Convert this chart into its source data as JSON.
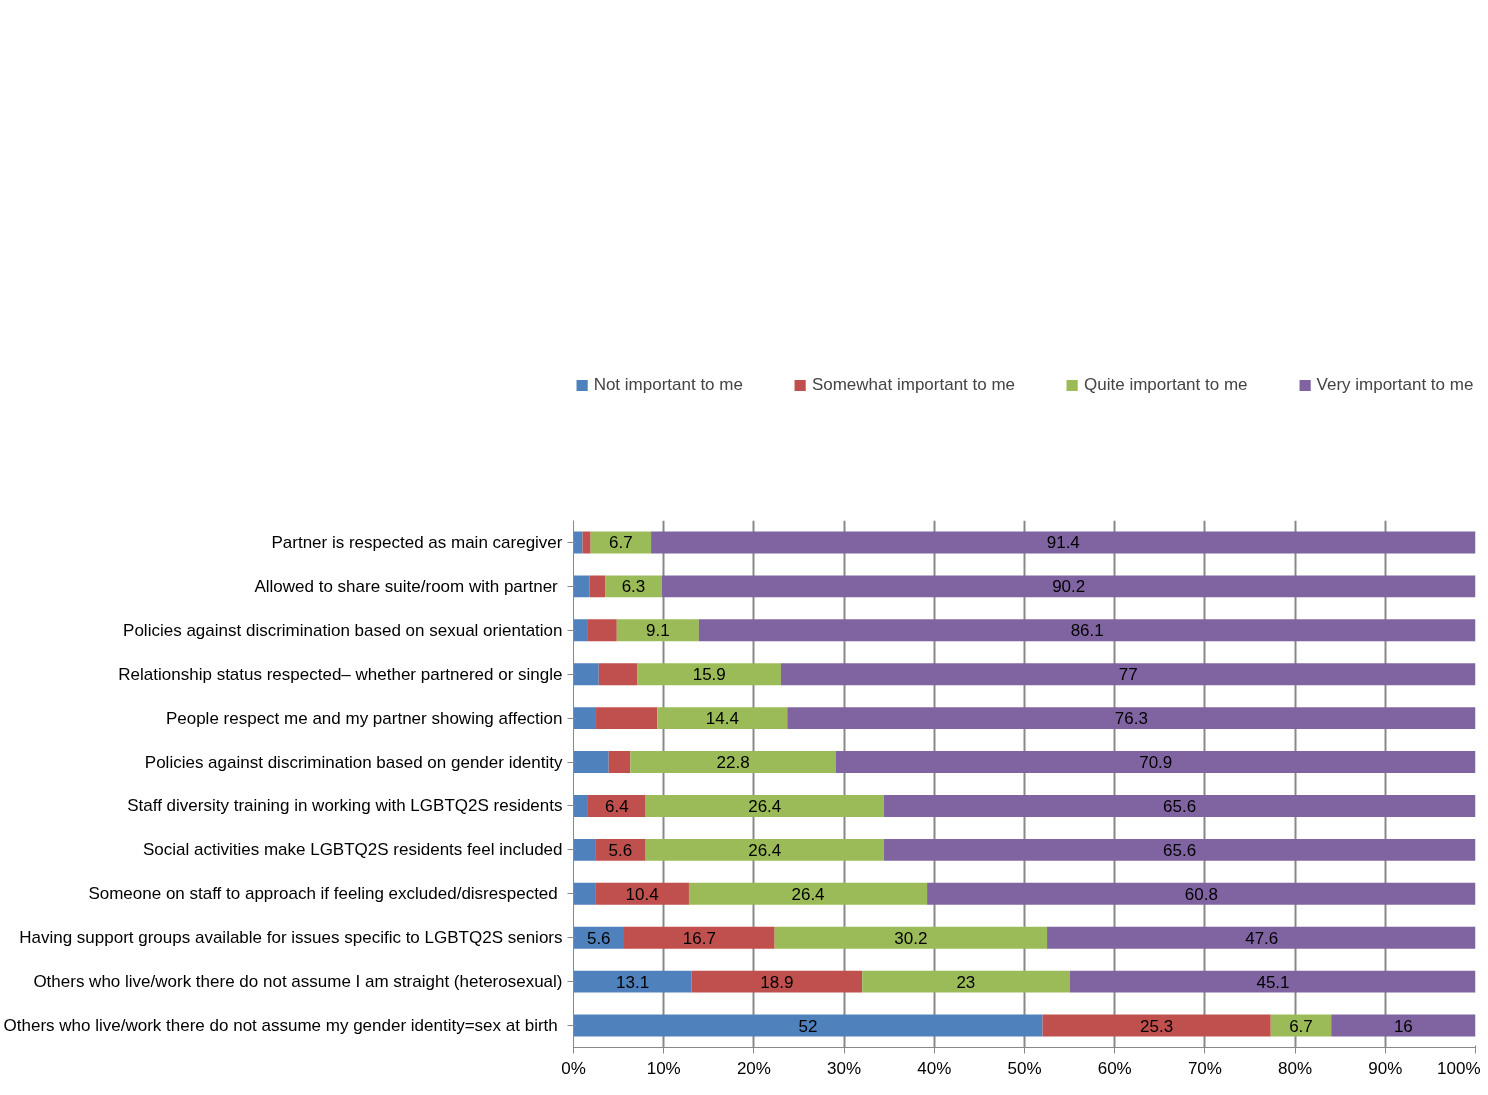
{
  "chart_data": {
    "type": "bar",
    "orientation": "horizontal",
    "stacked": true,
    "categories": [
      "Partner is respected as main caregiver",
      "Allowed to share suite/room  with partner",
      "Policies against discrimination based on sexual orientation",
      "Relationship status respected– whether partnered or single",
      "People respect me and my partner showing affection",
      "Policies against discrimination based on gender identity",
      "Staff diversity training in working with LGBTQ2S residents",
      "Social activities make LGBTQ2S residents feel included",
      "Someone on staff to approach if  feeling excluded/disrespected",
      "Having support groups available for issues specific to LGBTQ2S seniors",
      "Others who live/work there do not assume I am straight (heterosexual)",
      "Others who live/work there do not assume my gender identity=sex  at birth"
    ],
    "series": [
      {
        "name": "Not important to me",
        "color": "#4f81bd",
        "values": [
          1.0,
          1.8,
          1.6,
          2.8,
          2.5,
          3.9,
          1.6,
          2.4,
          2.4,
          5.6,
          13.1,
          52
        ],
        "value_labels": [
          null,
          null,
          null,
          null,
          null,
          null,
          null,
          null,
          null,
          "5.6",
          "13.1",
          "52"
        ]
      },
      {
        "name": "Somewhat important to me",
        "color": "#c0504d",
        "values": [
          0.9,
          1.7,
          3.2,
          4.3,
          6.8,
          2.4,
          6.4,
          5.6,
          10.4,
          16.7,
          18.9,
          25.3
        ],
        "value_labels": [
          null,
          null,
          null,
          null,
          null,
          null,
          "6.4",
          "5.6",
          "10.4",
          "16.7",
          "18.9",
          "25.3"
        ]
      },
      {
        "name": "Quite important to me",
        "color": "#9bbb59",
        "values": [
          6.7,
          6.3,
          9.1,
          15.9,
          14.4,
          22.8,
          26.4,
          26.4,
          26.4,
          30.2,
          23,
          6.7
        ],
        "value_labels": [
          "6.7",
          "6.3",
          "9.1",
          "15.9",
          "14.4",
          "22.8",
          "26.4",
          "26.4",
          "26.4",
          "30.2",
          "23",
          "6.7"
        ]
      },
      {
        "name": "Very important to me",
        "color": "#8064a2",
        "values": [
          91.4,
          90.2,
          86.1,
          77,
          76.3,
          70.9,
          65.6,
          65.6,
          60.8,
          47.6,
          45.1,
          16
        ],
        "value_labels": [
          "91.4",
          "90.2",
          "86.1",
          "77",
          "76.3",
          "70.9",
          "65.6",
          "65.6",
          "60.8",
          "47.6",
          "45.1",
          "16"
        ]
      }
    ],
    "xlim": [
      0,
      100
    ],
    "xticks": [
      {
        "value": 0,
        "label": "0%"
      },
      {
        "value": 10,
        "label": "10%"
      },
      {
        "value": 20,
        "label": "20%"
      },
      {
        "value": 30,
        "label": "30%"
      },
      {
        "value": 40,
        "label": "40%"
      },
      {
        "value": 50,
        "label": "50%"
      },
      {
        "value": 60,
        "label": "60%"
      },
      {
        "value": 70,
        "label": "70%"
      },
      {
        "value": 80,
        "label": "80%"
      },
      {
        "value": 90,
        "label": "90%"
      },
      {
        "value": 100,
        "label": "100%"
      }
    ],
    "grid": "x",
    "legend": "top"
  }
}
